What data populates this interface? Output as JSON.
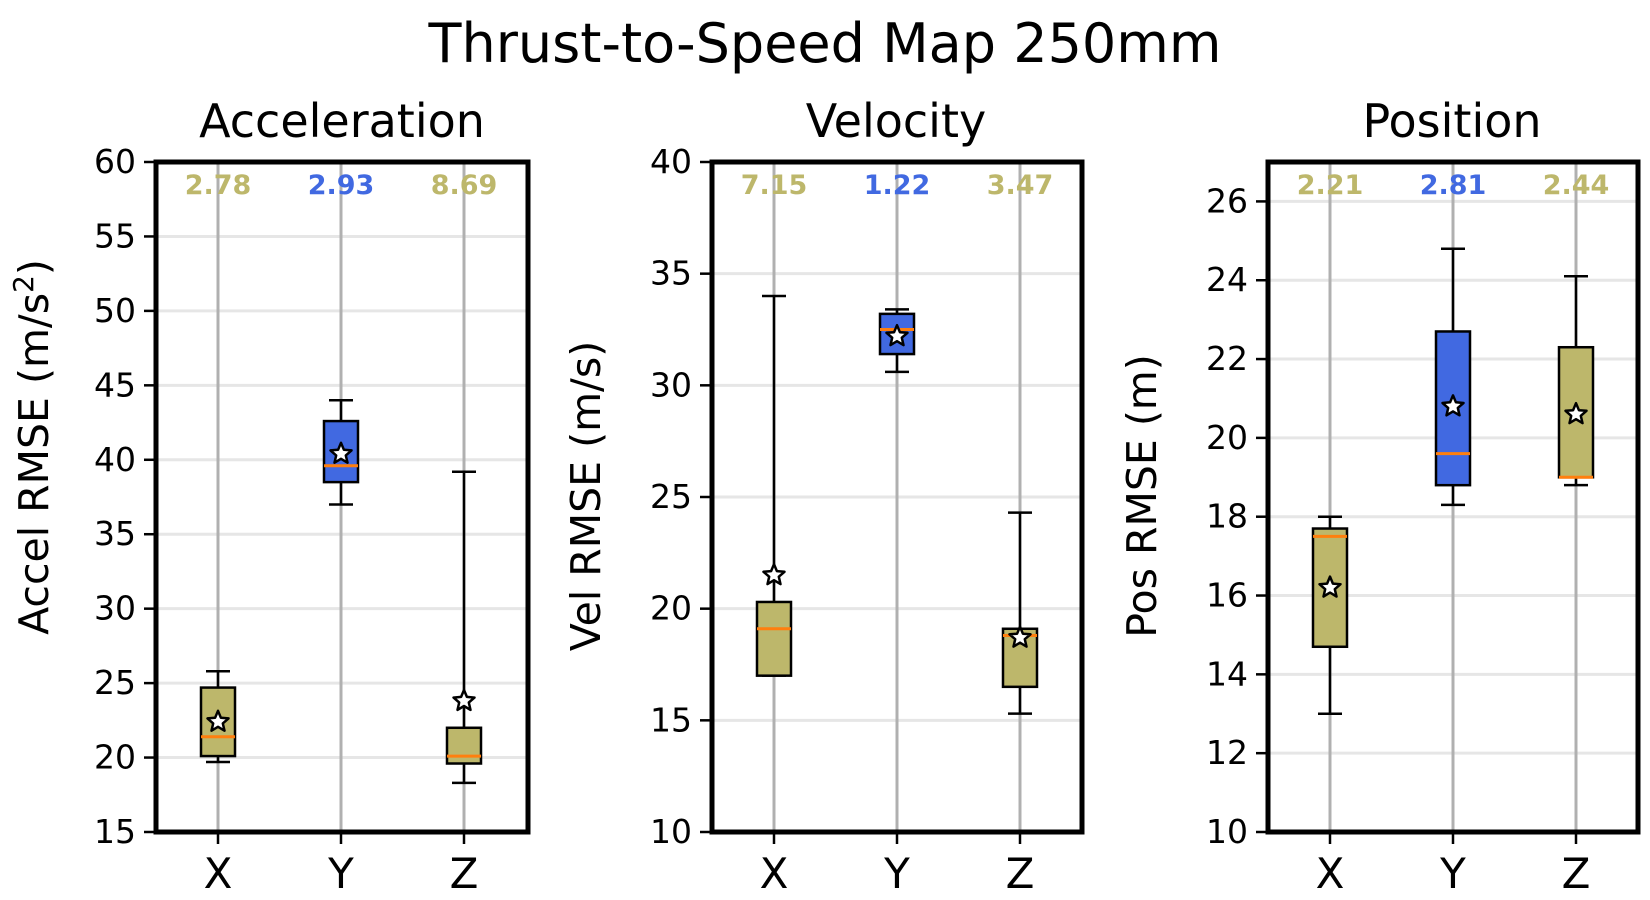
{
  "figure": {
    "title": "Thrust-to-Speed Map 250mm"
  },
  "colors": {
    "highlight": "#4169e1",
    "default": "#bdb76b",
    "median": "#ff7f0e",
    "grid": "#b0b0b0"
  },
  "chart_data": [
    {
      "type": "box",
      "title": "Acceleration",
      "ylabel_text": "Accel RMSE (m/s",
      "ylabel_sup": "2",
      "ylabel_tail": ")",
      "ylim": [
        15,
        60
      ],
      "yticks": [
        15,
        20,
        25,
        30,
        35,
        40,
        45,
        50,
        55,
        60
      ],
      "categories": [
        "X",
        "Y",
        "Z"
      ],
      "stats": [
        "2.78",
        "2.93",
        "8.69"
      ],
      "highlight": [
        false,
        true,
        false
      ],
      "boxes": [
        {
          "whislo": 19.7,
          "q1": 20.1,
          "med": 21.4,
          "q3": 24.7,
          "whishi": 25.8,
          "mean": 22.4
        },
        {
          "whislo": 37.0,
          "q1": 38.5,
          "med": 39.6,
          "q3": 42.6,
          "whishi": 44.0,
          "mean": 40.4
        },
        {
          "whislo": 18.3,
          "q1": 19.6,
          "med": 20.1,
          "q3": 22.0,
          "whishi": 39.2,
          "mean": 23.8
        }
      ]
    },
    {
      "type": "box",
      "title": "Velocity",
      "ylabel_text": "Vel RMSE (m/s)",
      "ylabel_sup": "",
      "ylabel_tail": "",
      "ylim": [
        10,
        40
      ],
      "yticks": [
        10,
        15,
        20,
        25,
        30,
        35,
        40
      ],
      "categories": [
        "X",
        "Y",
        "Z"
      ],
      "stats": [
        "7.15",
        "1.22",
        "3.47"
      ],
      "highlight": [
        false,
        true,
        false
      ],
      "boxes": [
        {
          "whislo": 17.0,
          "q1": 17.0,
          "med": 19.1,
          "q3": 20.3,
          "whishi": 34.0,
          "mean": 21.5
        },
        {
          "whislo": 30.6,
          "q1": 31.4,
          "med": 32.5,
          "q3": 33.2,
          "whishi": 33.4,
          "mean": 32.2
        },
        {
          "whislo": 15.3,
          "q1": 16.5,
          "med": 18.8,
          "q3": 19.1,
          "whishi": 24.3,
          "mean": 18.7
        }
      ]
    },
    {
      "type": "box",
      "title": "Position",
      "ylabel_text": "Pos RMSE (m)",
      "ylabel_sup": "",
      "ylabel_tail": "",
      "ylim": [
        10,
        27
      ],
      "yticks": [
        10,
        12,
        14,
        16,
        18,
        20,
        22,
        24,
        26
      ],
      "categories": [
        "X",
        "Y",
        "Z"
      ],
      "stats": [
        "2.21",
        "2.81",
        "2.44"
      ],
      "highlight": [
        false,
        true,
        false
      ],
      "boxes": [
        {
          "whislo": 13.0,
          "q1": 14.7,
          "med": 17.5,
          "q3": 17.7,
          "whishi": 18.0,
          "mean": 16.2
        },
        {
          "whislo": 18.3,
          "q1": 18.8,
          "med": 19.6,
          "q3": 22.7,
          "whishi": 24.8,
          "mean": 20.8
        },
        {
          "whislo": 18.8,
          "q1": 19.0,
          "med": 19.0,
          "q3": 22.3,
          "whishi": 24.1,
          "mean": 20.6
        }
      ]
    }
  ]
}
